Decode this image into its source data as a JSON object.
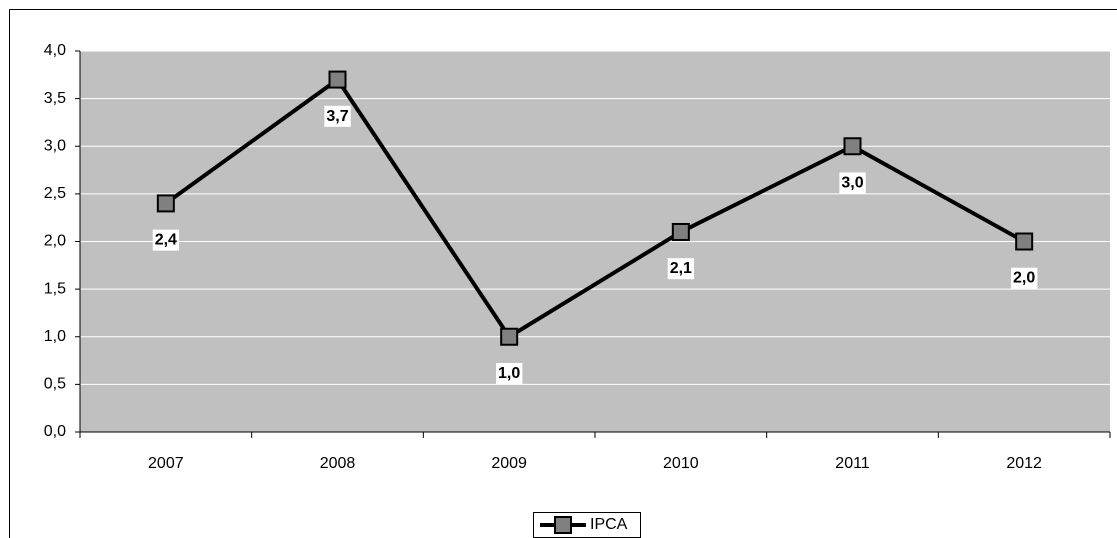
{
  "chart_data": {
    "type": "line",
    "categories": [
      "2007",
      "2008",
      "2009",
      "2010",
      "2011",
      "2012"
    ],
    "series": [
      {
        "name": "IPCA",
        "color": "#000000",
        "values": [
          2.4,
          3.7,
          1.0,
          2.1,
          3.0,
          2.0
        ],
        "value_labels": [
          "2,4",
          "3,7",
          "1,0",
          "2,1",
          "3,0",
          "2,0"
        ]
      }
    ],
    "ylim": [
      0,
      4
    ],
    "yticks": [
      {
        "value": 0,
        "label": "0,0"
      },
      {
        "value": 0.5,
        "label": "0,5"
      },
      {
        "value": 1,
        "label": "1,0"
      },
      {
        "value": 1.5,
        "label": "1,5"
      },
      {
        "value": 2,
        "label": "2,0"
      },
      {
        "value": 2.5,
        "label": "2,5"
      },
      {
        "value": 3,
        "label": "3,0"
      },
      {
        "value": 3.5,
        "label": "3,5"
      },
      {
        "value": 4,
        "label": "4,0"
      }
    ],
    "grid": true,
    "legend": "bottom"
  }
}
